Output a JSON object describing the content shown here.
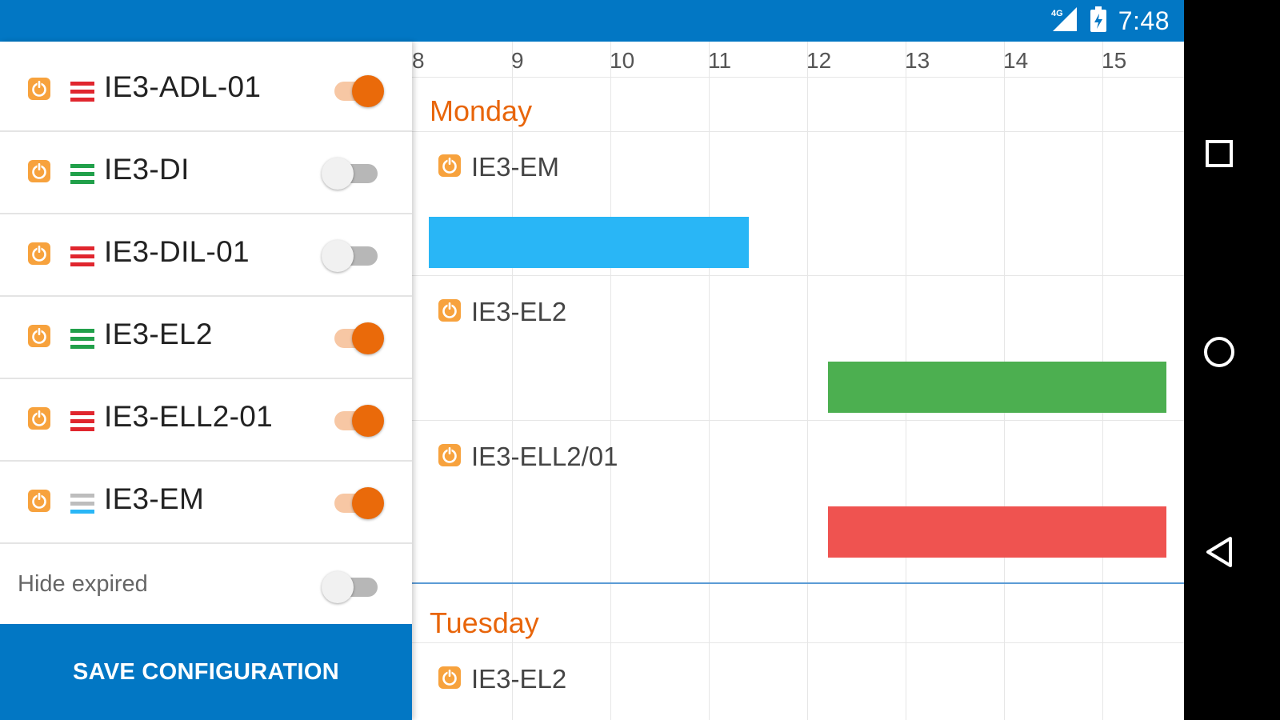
{
  "status_bar": {
    "network": "4G",
    "time": "7:48"
  },
  "devices": [
    {
      "name": "IE3-ADL-01",
      "lines_color": "#e0262e",
      "enabled": true
    },
    {
      "name": "IE3-DI",
      "lines_color": "#21a04a",
      "enabled": false
    },
    {
      "name": "IE3-DIL-01",
      "lines_color": "#e0262e",
      "enabled": false
    },
    {
      "name": "IE3-EL2",
      "lines_color": "#21a04a",
      "enabled": true
    },
    {
      "name": "IE3-ELL2-01",
      "lines_color": "#e0262e",
      "enabled": true
    },
    {
      "name": "IE3-EM",
      "lines_color": "#bdbdbd",
      "lines_accent": "#29b6f6",
      "enabled": true
    }
  ],
  "hide_expired": {
    "label": "Hide expired",
    "enabled": false
  },
  "save_button": {
    "label": "SAVE CONFIGURATION"
  },
  "schedule": {
    "hours": [
      "8",
      "9",
      "10",
      "11",
      "12",
      "13",
      "14",
      "15"
    ],
    "days": [
      {
        "name": "Monday",
        "items": [
          {
            "device": "IE3-EM",
            "bar_color": "#29b6f6",
            "start_hour": 8.15,
            "end_hour": 11.4
          },
          {
            "device": "IE3-EL2",
            "bar_color": "#4caf50",
            "start_hour": 12.2,
            "end_hour": 15.7
          },
          {
            "device": "IE3-ELL2/01",
            "bar_color": "#ef5350",
            "start_hour": 12.2,
            "end_hour": 15.7
          }
        ]
      },
      {
        "name": "Tuesday",
        "items": [
          {
            "device": "IE3-EL2"
          }
        ]
      }
    ]
  },
  "colors": {
    "accent": "#ea6a0a",
    "primary": "#0277c4"
  }
}
